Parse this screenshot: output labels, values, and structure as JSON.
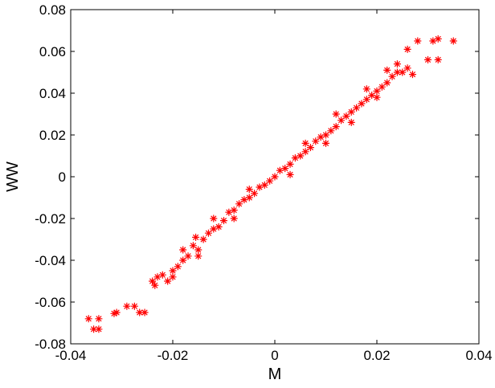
{
  "chart_data": {
    "type": "scatter",
    "xlabel": "M",
    "ylabel": "WW",
    "color": "#ff0000",
    "xlim": [
      -0.04,
      0.04
    ],
    "xticks": [
      -0.04,
      -0.02,
      0,
      0.02,
      0.04
    ],
    "ylim": [
      -0.08,
      0.08
    ],
    "yticks": [
      -0.08,
      -0.06,
      -0.04,
      -0.02,
      0,
      0.02,
      0.04,
      0.06,
      0.08
    ],
    "x": [
      -0.0365,
      -0.0345,
      -0.0355,
      -0.0345,
      -0.031,
      -0.0315,
      -0.029,
      -0.0275,
      -0.0265,
      -0.0255,
      -0.0235,
      -0.024,
      -0.023,
      -0.022,
      -0.021,
      -0.02,
      -0.019,
      -0.018,
      -0.017,
      -0.016,
      -0.0155,
      -0.015,
      -0.014,
      -0.013,
      -0.012,
      -0.011,
      -0.01,
      -0.009,
      -0.008,
      -0.007,
      -0.006,
      -0.005,
      -0.004,
      -0.003,
      -0.002,
      -0.001,
      0,
      0.001,
      0.002,
      0.003,
      0.004,
      0.005,
      0.006,
      0.007,
      0.008,
      0.009,
      0.01,
      0.011,
      0.012,
      0.013,
      0.014,
      0.015,
      0.016,
      0.017,
      0.018,
      0.019,
      0.02,
      0.021,
      0.022,
      0.023,
      0.024,
      0.025,
      0.026,
      0.026,
      0.027,
      0.028,
      0.031,
      0.032,
      0.035,
      0.03,
      0.032,
      -0.012,
      -0.008,
      -0.005,
      0.003,
      0.006,
      0.01,
      0.012,
      0.015,
      0.02,
      0.018,
      -0.018,
      -0.02,
      -0.015,
      0.022,
      0.024
    ],
    "y": [
      -0.068,
      -0.068,
      -0.073,
      -0.073,
      -0.065,
      -0.0655,
      -0.062,
      -0.062,
      -0.065,
      -0.065,
      -0.052,
      -0.05,
      -0.048,
      -0.047,
      -0.05,
      -0.045,
      -0.043,
      -0.04,
      -0.038,
      -0.033,
      -0.029,
      -0.035,
      -0.03,
      -0.027,
      -0.025,
      -0.024,
      -0.021,
      -0.017,
      -0.016,
      -0.013,
      -0.011,
      -0.01,
      -0.008,
      -0.005,
      -0.004,
      -0.002,
      0,
      0.003,
      0.004,
      0.006,
      0.009,
      0.01,
      0.012,
      0.014,
      0.017,
      0.019,
      0.02,
      0.022,
      0.024,
      0.027,
      0.029,
      0.031,
      0.033,
      0.035,
      0.037,
      0.039,
      0.041,
      0.043,
      0.045,
      0.048,
      0.05,
      0.05,
      0.052,
      0.061,
      0.049,
      0.065,
      0.065,
      0.066,
      0.065,
      0.056,
      0.056,
      -0.02,
      -0.02,
      -0.006,
      0.001,
      0.016,
      0.016,
      0.03,
      0.026,
      0.038,
      0.042,
      -0.035,
      -0.048,
      -0.038,
      0.051,
      0.054
    ]
  }
}
